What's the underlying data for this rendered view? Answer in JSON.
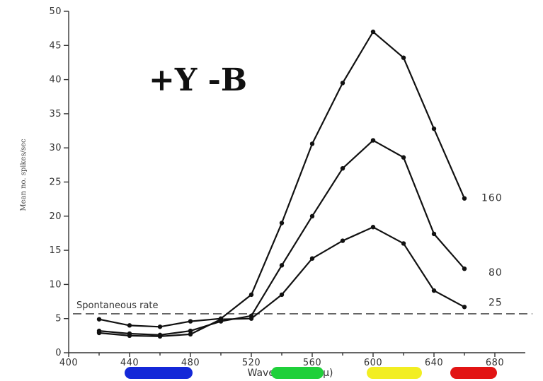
{
  "chart_data": {
    "type": "line",
    "title": "+Y -B",
    "xlabel": "Wavelength (mμ)",
    "ylabel": "Mean no. spikes/sec",
    "xlim": [
      400,
      700
    ],
    "ylim": [
      0,
      50
    ],
    "x_ticks": [
      "400",
      "440",
      "480",
      "520",
      "560",
      "600",
      "640",
      "680"
    ],
    "y_ticks": [
      "0",
      "5",
      "10",
      "15",
      "20",
      "25",
      "30",
      "35",
      "40",
      "45",
      "50"
    ],
    "series": [
      {
        "name": "160",
        "x": [
          420,
          440,
          460,
          480,
          500,
          520,
          540,
          560,
          580,
          600,
          620,
          640,
          660,
          680
        ],
        "y": [
          4.9,
          4.0,
          3.8,
          4.6,
          5.0,
          8.5,
          19.0,
          30.6,
          39.5,
          47.0,
          43.2,
          32.8,
          22.6,
          null
        ],
        "label": "160"
      },
      {
        "name": "80",
        "x": [
          420,
          440,
          460,
          480,
          500,
          520,
          540,
          560,
          580,
          600,
          620,
          640,
          660
        ],
        "y": [
          3.2,
          2.8,
          2.6,
          3.2,
          4.6,
          5.4,
          12.8,
          20.0,
          27.0,
          31.1,
          28.6,
          17.4,
          12.3
        ],
        "label": "80"
      },
      {
        "name": "25",
        "x": [
          420,
          440,
          460,
          480,
          500,
          520,
          540,
          560,
          580,
          600,
          620,
          640,
          660
        ],
        "y": [
          2.9,
          2.5,
          2.4,
          2.7,
          4.9,
          5.0,
          8.5,
          13.8,
          16.4,
          18.4,
          16.0,
          9.1,
          6.7
        ],
        "label": "25"
      }
    ],
    "reference_line": {
      "label": "Spontaneous rate",
      "y": 5.7
    },
    "grid": false,
    "color_bars": [
      {
        "color": "#1428d8"
      },
      {
        "color": "#1fd03a"
      },
      {
        "color": "#f2ee22"
      },
      {
        "color": "#e21414"
      }
    ]
  }
}
